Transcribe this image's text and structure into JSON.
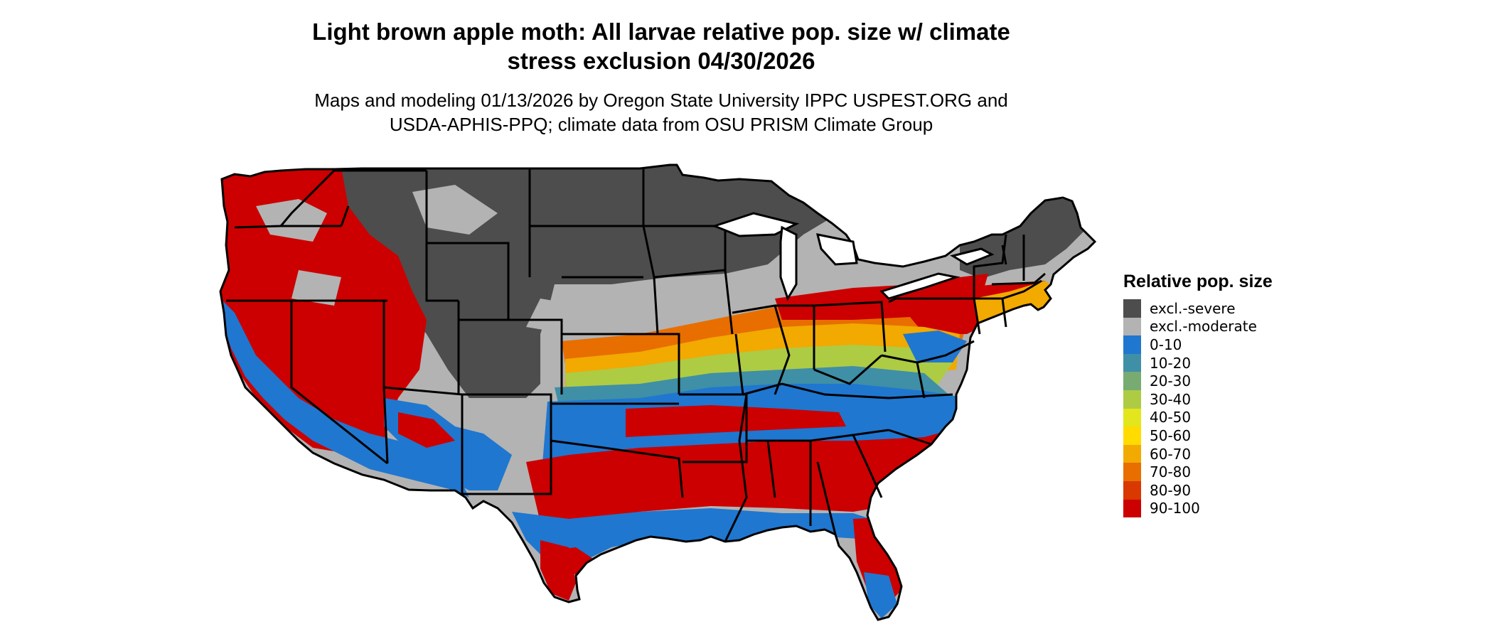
{
  "title_line1": "Light brown apple moth: All larvae relative pop. size w/ climate",
  "title_line2": "stress exclusion 04/30/2026",
  "subtitle_line1": "Maps and modeling 01/13/2026 by Oregon State University IPPC USPEST.ORG and",
  "subtitle_line2": "USDA-APHIS-PPQ; climate data from OSU PRISM Climate Group",
  "legend": {
    "title": "Relative pop. size",
    "items": [
      {
        "label": "excl.-severe",
        "color": "#4d4d4d"
      },
      {
        "label": "excl.-moderate",
        "color": "#b3b3b3"
      },
      {
        "label": "0-10",
        "color": "#1f77d0"
      },
      {
        "label": "10-20",
        "color": "#3f8fa6"
      },
      {
        "label": "20-30",
        "color": "#78ab72"
      },
      {
        "label": "30-40",
        "color": "#aecb44"
      },
      {
        "label": "40-50",
        "color": "#e3e61c"
      },
      {
        "label": "50-60",
        "color": "#ffdb00"
      },
      {
        "label": "60-70",
        "color": "#f2a900"
      },
      {
        "label": "70-80",
        "color": "#e86e00"
      },
      {
        "label": "80-90",
        "color": "#d93800"
      },
      {
        "label": "90-100",
        "color": "#cc0000"
      }
    ]
  }
}
